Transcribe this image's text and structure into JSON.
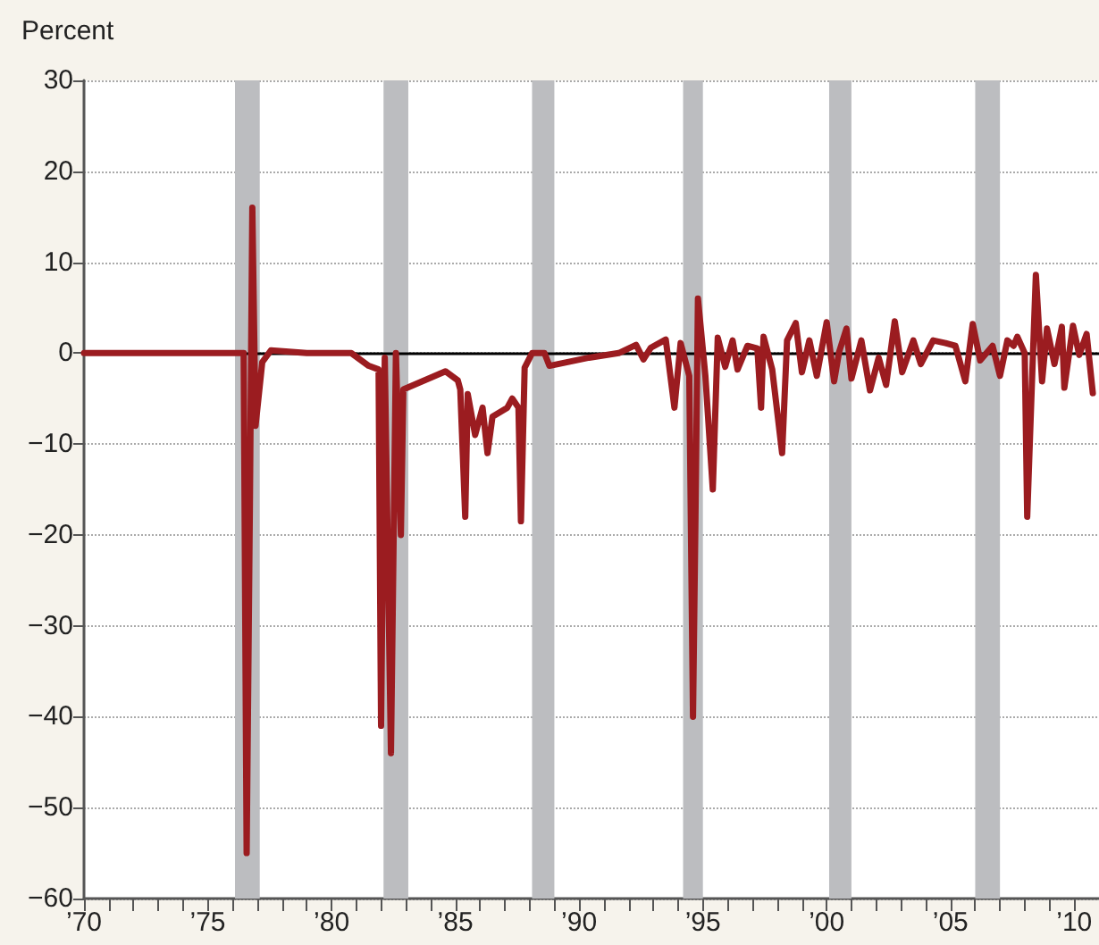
{
  "chart_data": {
    "type": "line",
    "ylabel": "Percent",
    "xlim": [
      1970,
      2011
    ],
    "xticks": [
      {
        "value": 1970,
        "label": "’70"
      },
      {
        "value": 1971,
        "label": null
      },
      {
        "value": 1972,
        "label": null
      },
      {
        "value": 1973,
        "label": null
      },
      {
        "value": 1974,
        "label": null
      },
      {
        "value": 1975,
        "label": "’75"
      },
      {
        "value": 1976,
        "label": null
      },
      {
        "value": 1977,
        "label": null
      },
      {
        "value": 1978,
        "label": null
      },
      {
        "value": 1979,
        "label": null
      },
      {
        "value": 1980,
        "label": "’80"
      },
      {
        "value": 1981,
        "label": null
      },
      {
        "value": 1982,
        "label": null
      },
      {
        "value": 1983,
        "label": null
      },
      {
        "value": 1984,
        "label": null
      },
      {
        "value": 1985,
        "label": "’85"
      },
      {
        "value": 1986,
        "label": null
      },
      {
        "value": 1987,
        "label": null
      },
      {
        "value": 1988,
        "label": null
      },
      {
        "value": 1989,
        "label": null
      },
      {
        "value": 1990,
        "label": "’90"
      },
      {
        "value": 1991,
        "label": null
      },
      {
        "value": 1992,
        "label": null
      },
      {
        "value": 1993,
        "label": null
      },
      {
        "value": 1994,
        "label": null
      },
      {
        "value": 1995,
        "label": "’95"
      },
      {
        "value": 1996,
        "label": null
      },
      {
        "value": 1997,
        "label": null
      },
      {
        "value": 1998,
        "label": null
      },
      {
        "value": 1999,
        "label": null
      },
      {
        "value": 2000,
        "label": "’00"
      },
      {
        "value": 2001,
        "label": null
      },
      {
        "value": 2002,
        "label": null
      },
      {
        "value": 2003,
        "label": null
      },
      {
        "value": 2004,
        "label": null
      },
      {
        "value": 2005,
        "label": "’05"
      },
      {
        "value": 2006,
        "label": null
      },
      {
        "value": 2007,
        "label": null
      },
      {
        "value": 2008,
        "label": null
      },
      {
        "value": 2009,
        "label": null
      },
      {
        "value": 2010,
        "label": "’10"
      },
      {
        "value": 2011,
        "label": null
      }
    ],
    "ylim": [
      -60,
      30
    ],
    "yticks": [
      30,
      20,
      10,
      0,
      {
        "value": -10,
        "label": "−10"
      },
      {
        "value": -20,
        "label": "−20"
      },
      {
        "value": -30,
        "label": "−30"
      },
      {
        "value": -40,
        "label": "−40"
      },
      {
        "value": -50,
        "label": "−50"
      },
      {
        "value": -60,
        "label": "−60"
      }
    ],
    "grid": "y",
    "marker": "none",
    "line_style": "solid",
    "ref_lines": [
      {
        "axis": "y",
        "value": 0,
        "color": "#000000"
      }
    ],
    "bands": [
      {
        "axis": "x",
        "from": 1976.1,
        "to": 1977.1,
        "color": "#bcbdc0"
      },
      {
        "axis": "x",
        "from": 1982.1,
        "to": 1983.1,
        "color": "#bcbdc0"
      },
      {
        "axis": "x",
        "from": 1988.1,
        "to": 1989.0,
        "color": "#bcbdc0"
      },
      {
        "axis": "x",
        "from": 1994.2,
        "to": 1995.0,
        "color": "#bcbdc0"
      },
      {
        "axis": "x",
        "from": 2000.1,
        "to": 2001.0,
        "color": "#bcbdc0"
      },
      {
        "axis": "x",
        "from": 2006.0,
        "to": 2007.0,
        "color": "#bcbdc0"
      }
    ],
    "series": [
      {
        "color": "#9b1c20",
        "x": [
          1970,
          1976.45,
          1976.57,
          1976.7,
          1976.8,
          1976.93,
          1977.2,
          1977.55,
          1979,
          1980.8,
          1981.5,
          1981.9,
          1982.0,
          1982.15,
          1982.4,
          1982.6,
          1982.8,
          1982.9,
          1984.6,
          1985.1,
          1985.2,
          1985.4,
          1985.5,
          1985.8,
          1986.1,
          1986.3,
          1986.5,
          1987.1,
          1987.3,
          1987.55,
          1987.65,
          1987.8,
          1988.1,
          1988.6,
          1988.8,
          1990.4,
          1991.6,
          1992.3,
          1992.6,
          1992.9,
          1993.5,
          1993.85,
          1994.1,
          1994.45,
          1994.6,
          1994.7,
          1994.8,
          1995.1,
          1995.4,
          1995.6,
          1995.9,
          1996.2,
          1996.4,
          1996.8,
          1997.2,
          1997.35,
          1997.45,
          1997.8,
          1998.2,
          1998.4,
          1998.75,
          1999.0,
          1999.3,
          1999.6,
          2000.0,
          2000.3,
          2000.5,
          2000.8,
          2001.0,
          2001.4,
          2001.75,
          2002.1,
          2002.4,
          2002.75,
          2003.05,
          2003.5,
          2003.8,
          2004.3,
          2004.8,
          2005.2,
          2005.6,
          2005.9,
          2006.2,
          2006.7,
          2007.0,
          2007.3,
          2007.55,
          2007.7,
          2008.0,
          2008.1,
          2008.3,
          2008.45,
          2008.7,
          2008.9,
          2009.2,
          2009.5,
          2009.6,
          2009.95,
          2010.2,
          2010.5,
          2010.75
        ],
        "values": [
          0,
          0,
          -55,
          -17,
          16,
          -8,
          -1,
          0.3,
          0,
          0,
          -1.4,
          -1.8,
          -41,
          -0.5,
          -44,
          0,
          -20,
          -4,
          -2,
          -3,
          -4,
          -18,
          -4.5,
          -9,
          -6,
          -11,
          -7,
          -6,
          -5,
          -6,
          -18.5,
          -1.6,
          0,
          0,
          -1.4,
          -0.5,
          0,
          0.9,
          -0.7,
          0.6,
          1.5,
          -6,
          1.1,
          -2.5,
          -40,
          -18,
          6,
          -2.5,
          -15,
          1.7,
          -1.5,
          1.4,
          -1.8,
          0.8,
          0.5,
          -6,
          1.8,
          -1.8,
          -11,
          1.4,
          3.3,
          -2.1,
          1.4,
          -2.5,
          3.4,
          -3.1,
          0.1,
          2.7,
          -2.8,
          1.4,
          -4.1,
          -0.5,
          -3.5,
          3.5,
          -2.1,
          1.4,
          -1.2,
          1.4,
          1.1,
          0.8,
          -3.1,
          3.2,
          -0.8,
          0.8,
          -2.5,
          1.4,
          0.8,
          1.8,
          0,
          -18,
          -2.5,
          8.6,
          -3.1,
          2.7,
          -1.2,
          2.9,
          -3.8,
          3,
          -0.2,
          2.1,
          -4.4
        ]
      }
    ]
  }
}
